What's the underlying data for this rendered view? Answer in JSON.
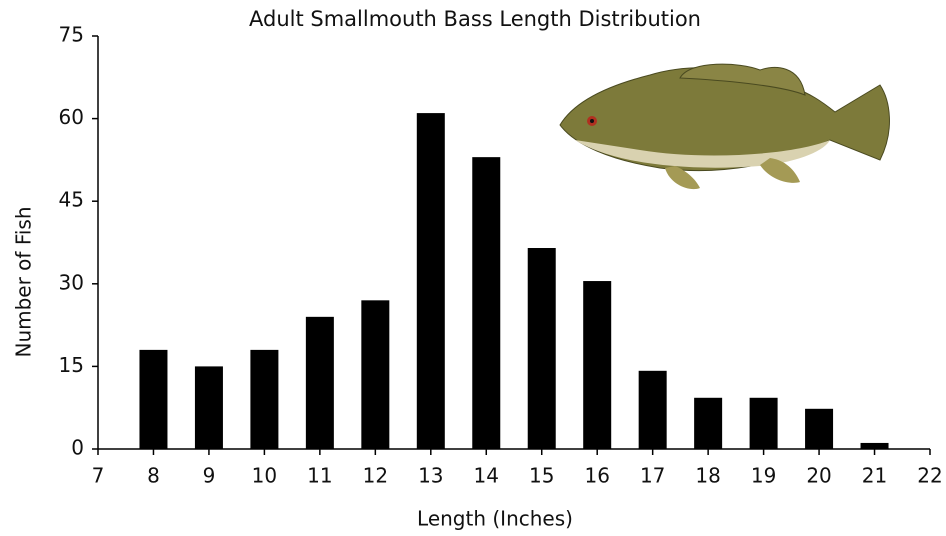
{
  "chart_data": {
    "type": "bar",
    "title": "Adult Smallmouth Bass Length Distribution",
    "x_label": "Length (Inches)",
    "y_label": "Number of Fish",
    "x": [
      8,
      9,
      10,
      11,
      12,
      13,
      14,
      15,
      16,
      17,
      18,
      19,
      20,
      21
    ],
    "values": [
      18,
      15,
      18,
      24,
      27,
      61,
      53,
      36.5,
      30.5,
      14.2,
      9.3,
      9.3,
      7.3,
      1.1
    ],
    "color": "#000000",
    "xlim": [
      7,
      22
    ],
    "xticks": [
      7,
      8,
      9,
      10,
      11,
      12,
      13,
      14,
      15,
      16,
      17,
      18,
      19,
      20,
      21,
      22
    ],
    "ylim": [
      0,
      75
    ],
    "yticks": [
      0,
      15,
      30,
      45,
      60,
      75
    ],
    "grid": false
  }
}
